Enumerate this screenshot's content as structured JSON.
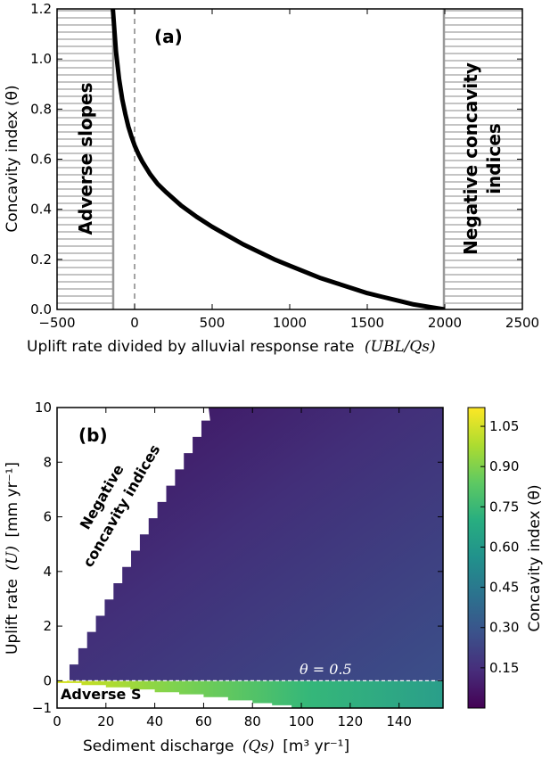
{
  "chart_data": [
    {
      "type": "line",
      "panel_label": "(a)",
      "xlabel": "Uplift rate divided by alluvial response rate",
      "xlabel_math": "(UBL/Qs)",
      "ylabel": "Concavity index (θ)",
      "xlim": [
        -500,
        2500
      ],
      "ylim": [
        0.0,
        1.2
      ],
      "x_ticks": [
        "−500",
        "0",
        "500",
        "1000",
        "1500",
        "2000",
        "2500"
      ],
      "y_ticks": [
        "0.0",
        "0.2",
        "0.4",
        "0.6",
        "0.8",
        "1.0",
        "1.2"
      ],
      "series": [
        {
          "x": [
            -140,
            -120,
            -100,
            -80,
            -60,
            -40,
            -20,
            0,
            25,
            50,
            100,
            150,
            200,
            300,
            400,
            500,
            600,
            700,
            800,
            900,
            1000,
            1100,
            1200,
            1300,
            1400,
            1500,
            1600,
            1700,
            1800,
            1900,
            2000
          ],
          "y": [
            1.2,
            1.03,
            0.92,
            0.84,
            0.78,
            0.73,
            0.69,
            0.655,
            0.62,
            0.59,
            0.54,
            0.5,
            0.47,
            0.415,
            0.37,
            0.33,
            0.295,
            0.26,
            0.23,
            0.2,
            0.175,
            0.15,
            0.125,
            0.105,
            0.085,
            0.065,
            0.05,
            0.035,
            0.02,
            0.01,
            0.0
          ]
        }
      ],
      "vline_dashed_x": 0,
      "shaded_regions": [
        {
          "label": "Adverse slopes",
          "x_from": -500,
          "x_to": -140
        },
        {
          "label_lines": [
            "Negative concavity",
            "indices"
          ],
          "x_from": 2000,
          "x_to": 2500
        }
      ],
      "grid": false
    },
    {
      "type": "heatmap",
      "panel_label": "(b)",
      "xlabel": "Sediment discharge",
      "xlabel_math": "(Qs)",
      "xlabel_units": "[m³ yr⁻¹]",
      "ylabel": "Uplift rate",
      "ylabel_math": "(U)",
      "ylabel_units": "[mm yr⁻¹]",
      "xlim": [
        0,
        158
      ],
      "ylim": [
        -1,
        10
      ],
      "x_ticks": [
        "0",
        "20",
        "40",
        "60",
        "80",
        "100",
        "120",
        "140"
      ],
      "y_ticks": [
        "−1",
        "0",
        "2",
        "4",
        "6",
        "8",
        "10"
      ],
      "colorbar": {
        "label": "Concavity index (θ)",
        "ticks": [
          "0.15",
          "0.30",
          "0.45",
          "0.60",
          "0.75",
          "0.90",
          "1.05"
        ],
        "range": [
          0.0,
          1.12
        ]
      },
      "contour": {
        "label": "θ = 0.5",
        "y": 0
      },
      "regions": [
        {
          "label_lines": [
            "Negative",
            "concavity indices"
          ]
        },
        {
          "label": "Adverse S"
        }
      ]
    }
  ]
}
